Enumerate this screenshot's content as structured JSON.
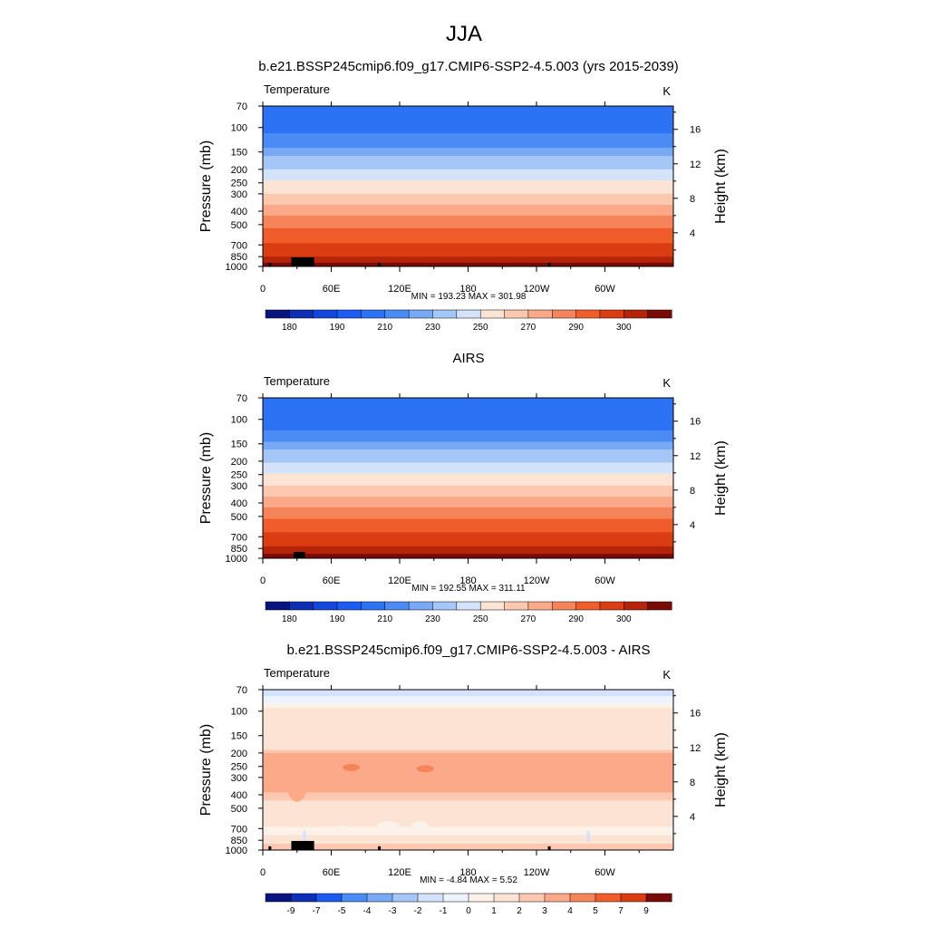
{
  "figure": {
    "season": "JJA"
  },
  "chart_data": [
    {
      "type": "heatmap",
      "title": "b.e21.BSSP245cmip6.f09_g17.CMIP6-SSP2-4.5.003 (yrs 2015-2039)",
      "left_string": "Temperature",
      "right_string": "K",
      "ylabel": "Pressure (mb)",
      "y2label": "Height (km)",
      "x_ticks": [
        "0",
        "60E",
        "120E",
        "180",
        "120W",
        "60W"
      ],
      "x_tick_values": [
        0,
        60,
        120,
        180,
        240,
        300
      ],
      "xlim": [
        0,
        360
      ],
      "y_ticks": [
        "70",
        "100",
        "150",
        "200",
        "250",
        "300",
        "400",
        "500",
        "700",
        "850",
        "1000"
      ],
      "y_tick_values": [
        70,
        100,
        150,
        200,
        250,
        300,
        400,
        500,
        700,
        850,
        1000
      ],
      "ylim": [
        70,
        1000
      ],
      "y_scale": "log",
      "y2_ticks": [
        "4",
        "8",
        "12",
        "16"
      ],
      "y2_tick_values": [
        4,
        8,
        12,
        16
      ],
      "stats_text": "MIN = 193.23  MAX = 301.98",
      "min": 193.23,
      "max": 301.98,
      "colorbar_labels": [
        "180",
        "190",
        "210",
        "230",
        "250",
        "270",
        "290",
        "300"
      ],
      "colorbar_levels": [
        175,
        180,
        185,
        190,
        200,
        210,
        220,
        230,
        240,
        250,
        260,
        270,
        280,
        290,
        295,
        300
      ],
      "bands": [
        {
          "p": 70,
          "level": 4
        },
        {
          "p": 110,
          "level": 5
        },
        {
          "p": 140,
          "level": 6
        },
        {
          "p": 160,
          "level": 7
        },
        {
          "p": 200,
          "level": 8
        },
        {
          "p": 240,
          "level": 9
        },
        {
          "p": 300,
          "level": 10
        },
        {
          "p": 360,
          "level": 11
        },
        {
          "p": 430,
          "level": 12
        },
        {
          "p": 530,
          "level": 13
        },
        {
          "p": 680,
          "level": 14
        },
        {
          "p": 850,
          "level": 15
        },
        {
          "p": 940,
          "level": 16
        }
      ],
      "terrain": [
        [
          5,
          0,
          940
        ],
        [
          25,
          20,
          860
        ],
        [
          41,
          0,
          940
        ],
        [
          101,
          0,
          940
        ],
        [
          250,
          0,
          940
        ]
      ]
    },
    {
      "type": "heatmap",
      "title": "AIRS",
      "left_string": "Temperature",
      "right_string": "K",
      "ylabel": "Pressure (mb)",
      "y2label": "Height (km)",
      "x_ticks": [
        "0",
        "60E",
        "120E",
        "180",
        "120W",
        "60W"
      ],
      "x_tick_values": [
        0,
        60,
        120,
        180,
        240,
        300
      ],
      "xlim": [
        0,
        360
      ],
      "y_ticks": [
        "70",
        "100",
        "150",
        "200",
        "250",
        "300",
        "400",
        "500",
        "700",
        "850",
        "1000"
      ],
      "y_tick_values": [
        70,
        100,
        150,
        200,
        250,
        300,
        400,
        500,
        700,
        850,
        1000
      ],
      "ylim": [
        70,
        1000
      ],
      "y_scale": "log",
      "y2_ticks": [
        "4",
        "8",
        "12",
        "16"
      ],
      "y2_tick_values": [
        4,
        8,
        12,
        16
      ],
      "stats_text": "MIN = 192.55  MAX = 311.11",
      "min": 192.55,
      "max": 311.11,
      "colorbar_labels": [
        "180",
        "190",
        "210",
        "230",
        "250",
        "270",
        "290",
        "300"
      ],
      "colorbar_levels": [
        175,
        180,
        185,
        190,
        200,
        210,
        220,
        230,
        240,
        250,
        260,
        270,
        280,
        290,
        295,
        300
      ],
      "bands": [
        {
          "p": 70,
          "level": 4
        },
        {
          "p": 120,
          "level": 5
        },
        {
          "p": 145,
          "level": 6
        },
        {
          "p": 165,
          "level": 7
        },
        {
          "p": 205,
          "level": 8
        },
        {
          "p": 245,
          "level": 9
        },
        {
          "p": 300,
          "level": 10
        },
        {
          "p": 360,
          "level": 11
        },
        {
          "p": 430,
          "level": 12
        },
        {
          "p": 520,
          "level": 13
        },
        {
          "p": 650,
          "level": 14
        },
        {
          "p": 820,
          "level": 15
        },
        {
          "p": 930,
          "level": 16
        }
      ],
      "terrain": [
        [
          27,
          10,
          900
        ]
      ]
    },
    {
      "type": "heatmap",
      "title": "b.e21.BSSP245cmip6.f09_g17.CMIP6-SSP2-4.5.003 - AIRS",
      "left_string": "Temperature",
      "right_string": "K",
      "ylabel": "Pressure (mb)",
      "y2label": "Height (km)",
      "x_ticks": [
        "0",
        "60E",
        "120E",
        "180",
        "120W",
        "60W"
      ],
      "x_tick_values": [
        0,
        60,
        120,
        180,
        240,
        300
      ],
      "xlim": [
        0,
        360
      ],
      "y_ticks": [
        "70",
        "100",
        "150",
        "200",
        "250",
        "300",
        "400",
        "500",
        "700",
        "850",
        "1000"
      ],
      "y_tick_values": [
        70,
        100,
        150,
        200,
        250,
        300,
        400,
        500,
        700,
        850,
        1000
      ],
      "ylim": [
        70,
        1000
      ],
      "y_scale": "log",
      "y2_ticks": [
        "4",
        "8",
        "12",
        "16"
      ],
      "y2_tick_values": [
        4,
        8,
        12,
        16
      ],
      "stats_text": "MIN =  -4.84  MAX =   5.52",
      "min": -4.84,
      "max": 5.52,
      "colorbar_labels": [
        "-9",
        "-7",
        "-5",
        "-4",
        "-3",
        "-2",
        "-1",
        "0",
        "1",
        "2",
        "3",
        "4",
        "5",
        "7",
        "9"
      ],
      "colorbar_levels": [
        -9,
        -7,
        -5,
        -4,
        -3,
        -2,
        -1,
        0,
        1,
        2,
        3,
        4,
        5,
        7,
        9
      ],
      "bands": [
        {
          "p": 70,
          "level": 6
        },
        {
          "p": 78,
          "level": 7
        },
        {
          "p": 88,
          "level": 8
        },
        {
          "p": 95,
          "level": 9
        },
        {
          "p": 190,
          "level": 10
        },
        {
          "p": 200,
          "level": 11
        },
        {
          "p": 385,
          "level": 10
        },
        {
          "p": 440,
          "level": 9
        },
        {
          "p": 680,
          "level": 8
        },
        {
          "p": 780,
          "level": 9
        },
        {
          "p": 900,
          "level": 10
        }
      ],
      "patches": [
        {
          "lon": [
            20,
            40
          ],
          "p": [
            210,
            450
          ],
          "level": 11
        },
        {
          "lon": [
            70,
            85
          ],
          "p": [
            240,
            270
          ],
          "level": 12
        },
        {
          "lon": [
            135,
            150
          ],
          "p": [
            245,
            275
          ],
          "level": 12
        },
        {
          "lon": [
            262,
            285
          ],
          "p": [
            210,
            360
          ],
          "level": 11
        },
        {
          "lon": [
            65,
            75
          ],
          "p": [
            665,
            720
          ],
          "level": 8
        },
        {
          "lon": [
            100,
            120
          ],
          "p": [
            620,
            720
          ],
          "level": 8
        },
        {
          "lon": [
            130,
            145
          ],
          "p": [
            620,
            720
          ],
          "level": 8
        },
        {
          "lon": [
            35,
            38
          ],
          "p": [
            720,
            880
          ],
          "level": 6
        },
        {
          "lon": [
            284,
            287
          ],
          "p": [
            720,
            880
          ],
          "level": 6
        }
      ],
      "terrain": [
        [
          5,
          0,
          940
        ],
        [
          25,
          20,
          860
        ],
        [
          41,
          0,
          940
        ],
        [
          101,
          0,
          940
        ],
        [
          250,
          0,
          940
        ]
      ]
    }
  ],
  "colors": {
    "abs_palette": [
      "#0a1480",
      "#0d2fb5",
      "#1346dd",
      "#1c5cf2",
      "#2c72f5",
      "#4a8bf5",
      "#77a9f5",
      "#a4c7f7",
      "#d2e3fb",
      "#fbe4d4",
      "#fcc8b0",
      "#fba989",
      "#f6845b",
      "#f05d2a",
      "#db3d12",
      "#b52408",
      "#7a0a05"
    ],
    "diff_palette": [
      "#0a1480",
      "#0d2fb5",
      "#1c5cf2",
      "#4a8bf5",
      "#77a9f5",
      "#a4c7f7",
      "#d2e3fb",
      "#eef4fe",
      "#fdf2ea",
      "#fbe4d4",
      "#fcc8b0",
      "#fba989",
      "#f6845b",
      "#f05d2a",
      "#db3d12",
      "#7a0a05"
    ]
  }
}
